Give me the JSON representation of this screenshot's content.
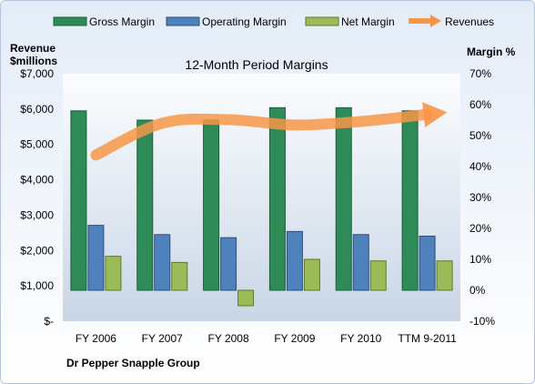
{
  "chart_data": {
    "type": "bar",
    "title": "12-Month Period Margins",
    "company": "Dr Pepper Snapple Group",
    "left_axis": {
      "label_line1": "Revenue",
      "label_line2": "$millions",
      "ylim": [
        0,
        7000
      ],
      "ticks": [
        "$-",
        "$1,000",
        "$2,000",
        "$3,000",
        "$4,000",
        "$5,000",
        "$6,000",
        "$7,000"
      ]
    },
    "right_axis": {
      "label": "Margin  %",
      "ylim": [
        -10,
        70
      ],
      "ticks": [
        "-10%",
        "0%",
        "10%",
        "20%",
        "30%",
        "40%",
        "50%",
        "60%",
        "70%"
      ]
    },
    "categories": [
      "FY 2006",
      "FY 2007",
      "FY 2008",
      "FY 2009",
      "FY 2010",
      "TTM 9-2011"
    ],
    "series": [
      {
        "name": "Gross Margin",
        "axis": "right",
        "kind": "bar",
        "color": "#2e8b57",
        "values": [
          58,
          55,
          55,
          59,
          59,
          58
        ]
      },
      {
        "name": "Operating Margin",
        "axis": "right",
        "kind": "bar",
        "color": "#4f81bd",
        "values": [
          21,
          18,
          17,
          19,
          18,
          17.5
        ]
      },
      {
        "name": "Net Margin",
        "axis": "right",
        "kind": "bar",
        "color": "#9bbb59",
        "values": [
          11,
          9,
          -5,
          10,
          9.5,
          9.5
        ]
      },
      {
        "name": "Revenues",
        "axis": "left",
        "kind": "line",
        "color": "#f79646",
        "values": [
          4700,
          5600,
          5700,
          5550,
          5650,
          5850
        ]
      }
    ],
    "grid": false,
    "legend": "top"
  }
}
